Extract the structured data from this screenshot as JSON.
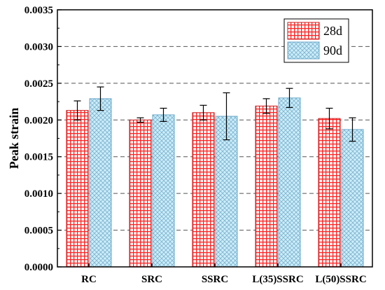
{
  "chart_data": {
    "type": "bar",
    "title": "",
    "xlabel": "",
    "ylabel": "Peak strain",
    "ylim": [
      0,
      0.0035
    ],
    "yticks": [
      "0.0000",
      "0.0005",
      "0.0010",
      "0.0015",
      "0.0020",
      "0.0025",
      "0.0030",
      "0.0035"
    ],
    "categories": [
      "RC",
      "SRC",
      "SSRC",
      "L(35)SSRC",
      "L(50)SSRC"
    ],
    "series": [
      {
        "name": "28d",
        "pattern": "grid",
        "fill": "#ff3b3b",
        "stroke": "#d01818",
        "values": [
          0.00213,
          0.002,
          0.0021,
          0.00219,
          0.00202
        ],
        "errors": [
          0.00013,
          3e-05,
          0.0001,
          0.0001,
          0.00014
        ]
      },
      {
        "name": "90d",
        "pattern": "crosshatch",
        "fill": "#b9e8f8",
        "stroke": "#6aa7c8",
        "values": [
          0.00229,
          0.00207,
          0.00205,
          0.0023,
          0.00187
        ],
        "errors": [
          0.00016,
          9e-05,
          0.00032,
          0.00013,
          0.00016
        ]
      }
    ],
    "grid": "dashed-horizontal",
    "legend_position": "top-right"
  }
}
